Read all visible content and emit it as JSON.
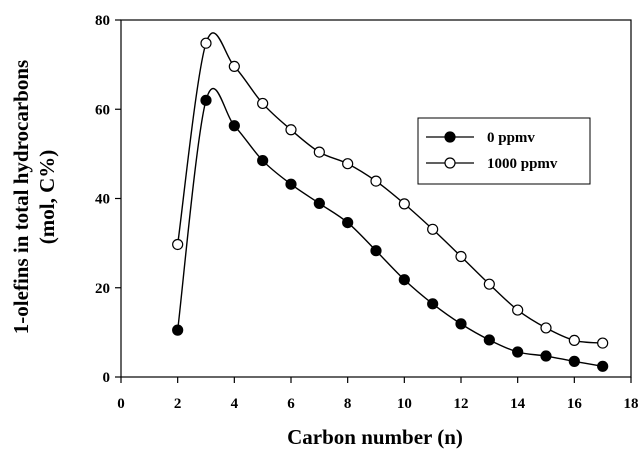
{
  "chart_data": {
    "type": "line",
    "xlabel": "Carbon number (n)",
    "ylabel_line1": "1-olefins in total hydrocarbons",
    "ylabel_line2": "(mol, C%)",
    "xlim": [
      0,
      18
    ],
    "ylim": [
      0,
      80
    ],
    "xticks": [
      0,
      2,
      4,
      6,
      8,
      10,
      12,
      14,
      16,
      18
    ],
    "yticks": [
      0,
      20,
      40,
      60,
      80
    ],
    "grid": false,
    "legend_position": "upper-right",
    "series": [
      {
        "name": "0 ppmv",
        "marker": "filled-circle",
        "color": "#000000",
        "x": [
          2,
          3,
          4,
          5,
          6,
          7,
          8,
          9,
          10,
          11,
          12,
          13,
          14,
          15,
          16,
          17
        ],
        "y": [
          10.5,
          62,
          56.3,
          48.5,
          43.2,
          38.9,
          34.6,
          28.3,
          21.8,
          16.4,
          11.9,
          8.3,
          5.6,
          4.7,
          3.5,
          2.4
        ]
      },
      {
        "name": "1000 ppmv",
        "marker": "open-circle",
        "color": "#000000",
        "x": [
          2,
          3,
          4,
          5,
          6,
          7,
          8,
          9,
          10,
          11,
          12,
          13,
          14,
          15,
          16,
          17
        ],
        "y": [
          29.7,
          74.8,
          69.6,
          61.3,
          55.4,
          50.4,
          47.8,
          43.9,
          38.8,
          33.1,
          27.0,
          20.8,
          15.0,
          11.0,
          8.2,
          7.6
        ]
      }
    ]
  }
}
